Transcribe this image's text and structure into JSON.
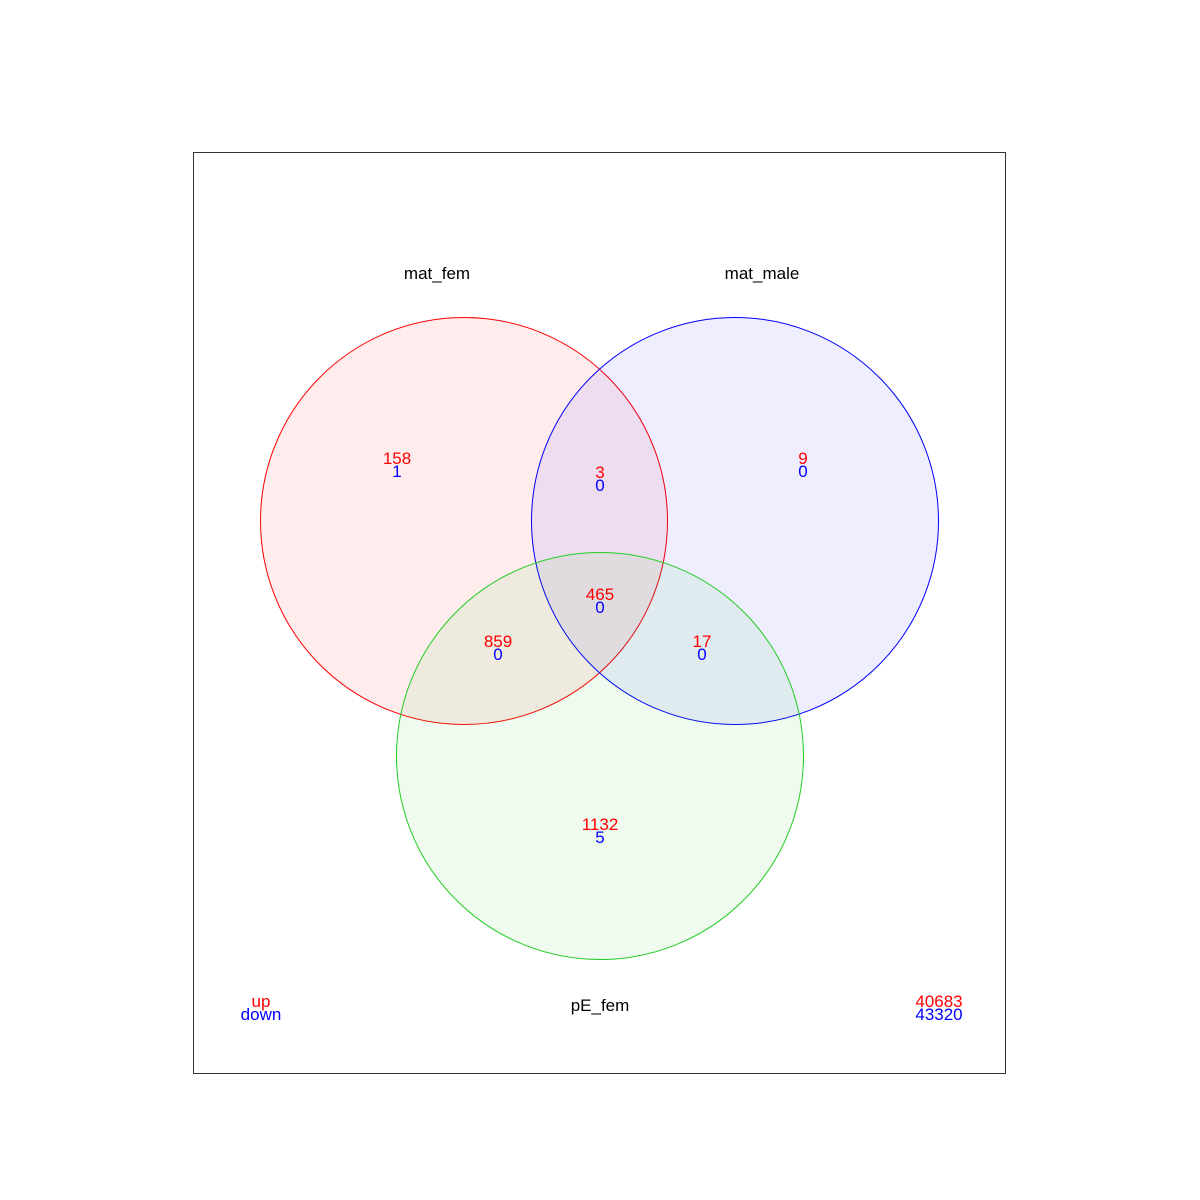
{
  "colors": {
    "up": "#ff0000",
    "down": "#0000ff",
    "frame": "#333333"
  },
  "sets": [
    {
      "key": "A",
      "name": "mat_fem",
      "stroke": "#ff0000",
      "fill": "#ff0000",
      "fill_opacity": 0.07
    },
    {
      "key": "B",
      "name": "mat_male",
      "stroke": "#0000ff",
      "fill": "#0000ff",
      "fill_opacity": 0.065
    },
    {
      "key": "C",
      "name": "pE_fem",
      "stroke": "#22cc22",
      "fill": "#22cc22",
      "fill_opacity": 0.075
    }
  ],
  "regions": [
    {
      "id": "A_only",
      "up": "158",
      "down": "1"
    },
    {
      "id": "AB_only",
      "up": "3",
      "down": "0"
    },
    {
      "id": "B_only",
      "up": "9",
      "down": "0"
    },
    {
      "id": "ABC",
      "up": "465",
      "down": "0"
    },
    {
      "id": "AC_only",
      "up": "859",
      "down": "0"
    },
    {
      "id": "BC_only",
      "up": "17",
      "down": "0"
    },
    {
      "id": "C_only",
      "up": "1132",
      "down": "5"
    }
  ],
  "legend": {
    "up_label": "up",
    "down_label": "down"
  },
  "outside": {
    "up": "40683",
    "down": "43320"
  }
}
